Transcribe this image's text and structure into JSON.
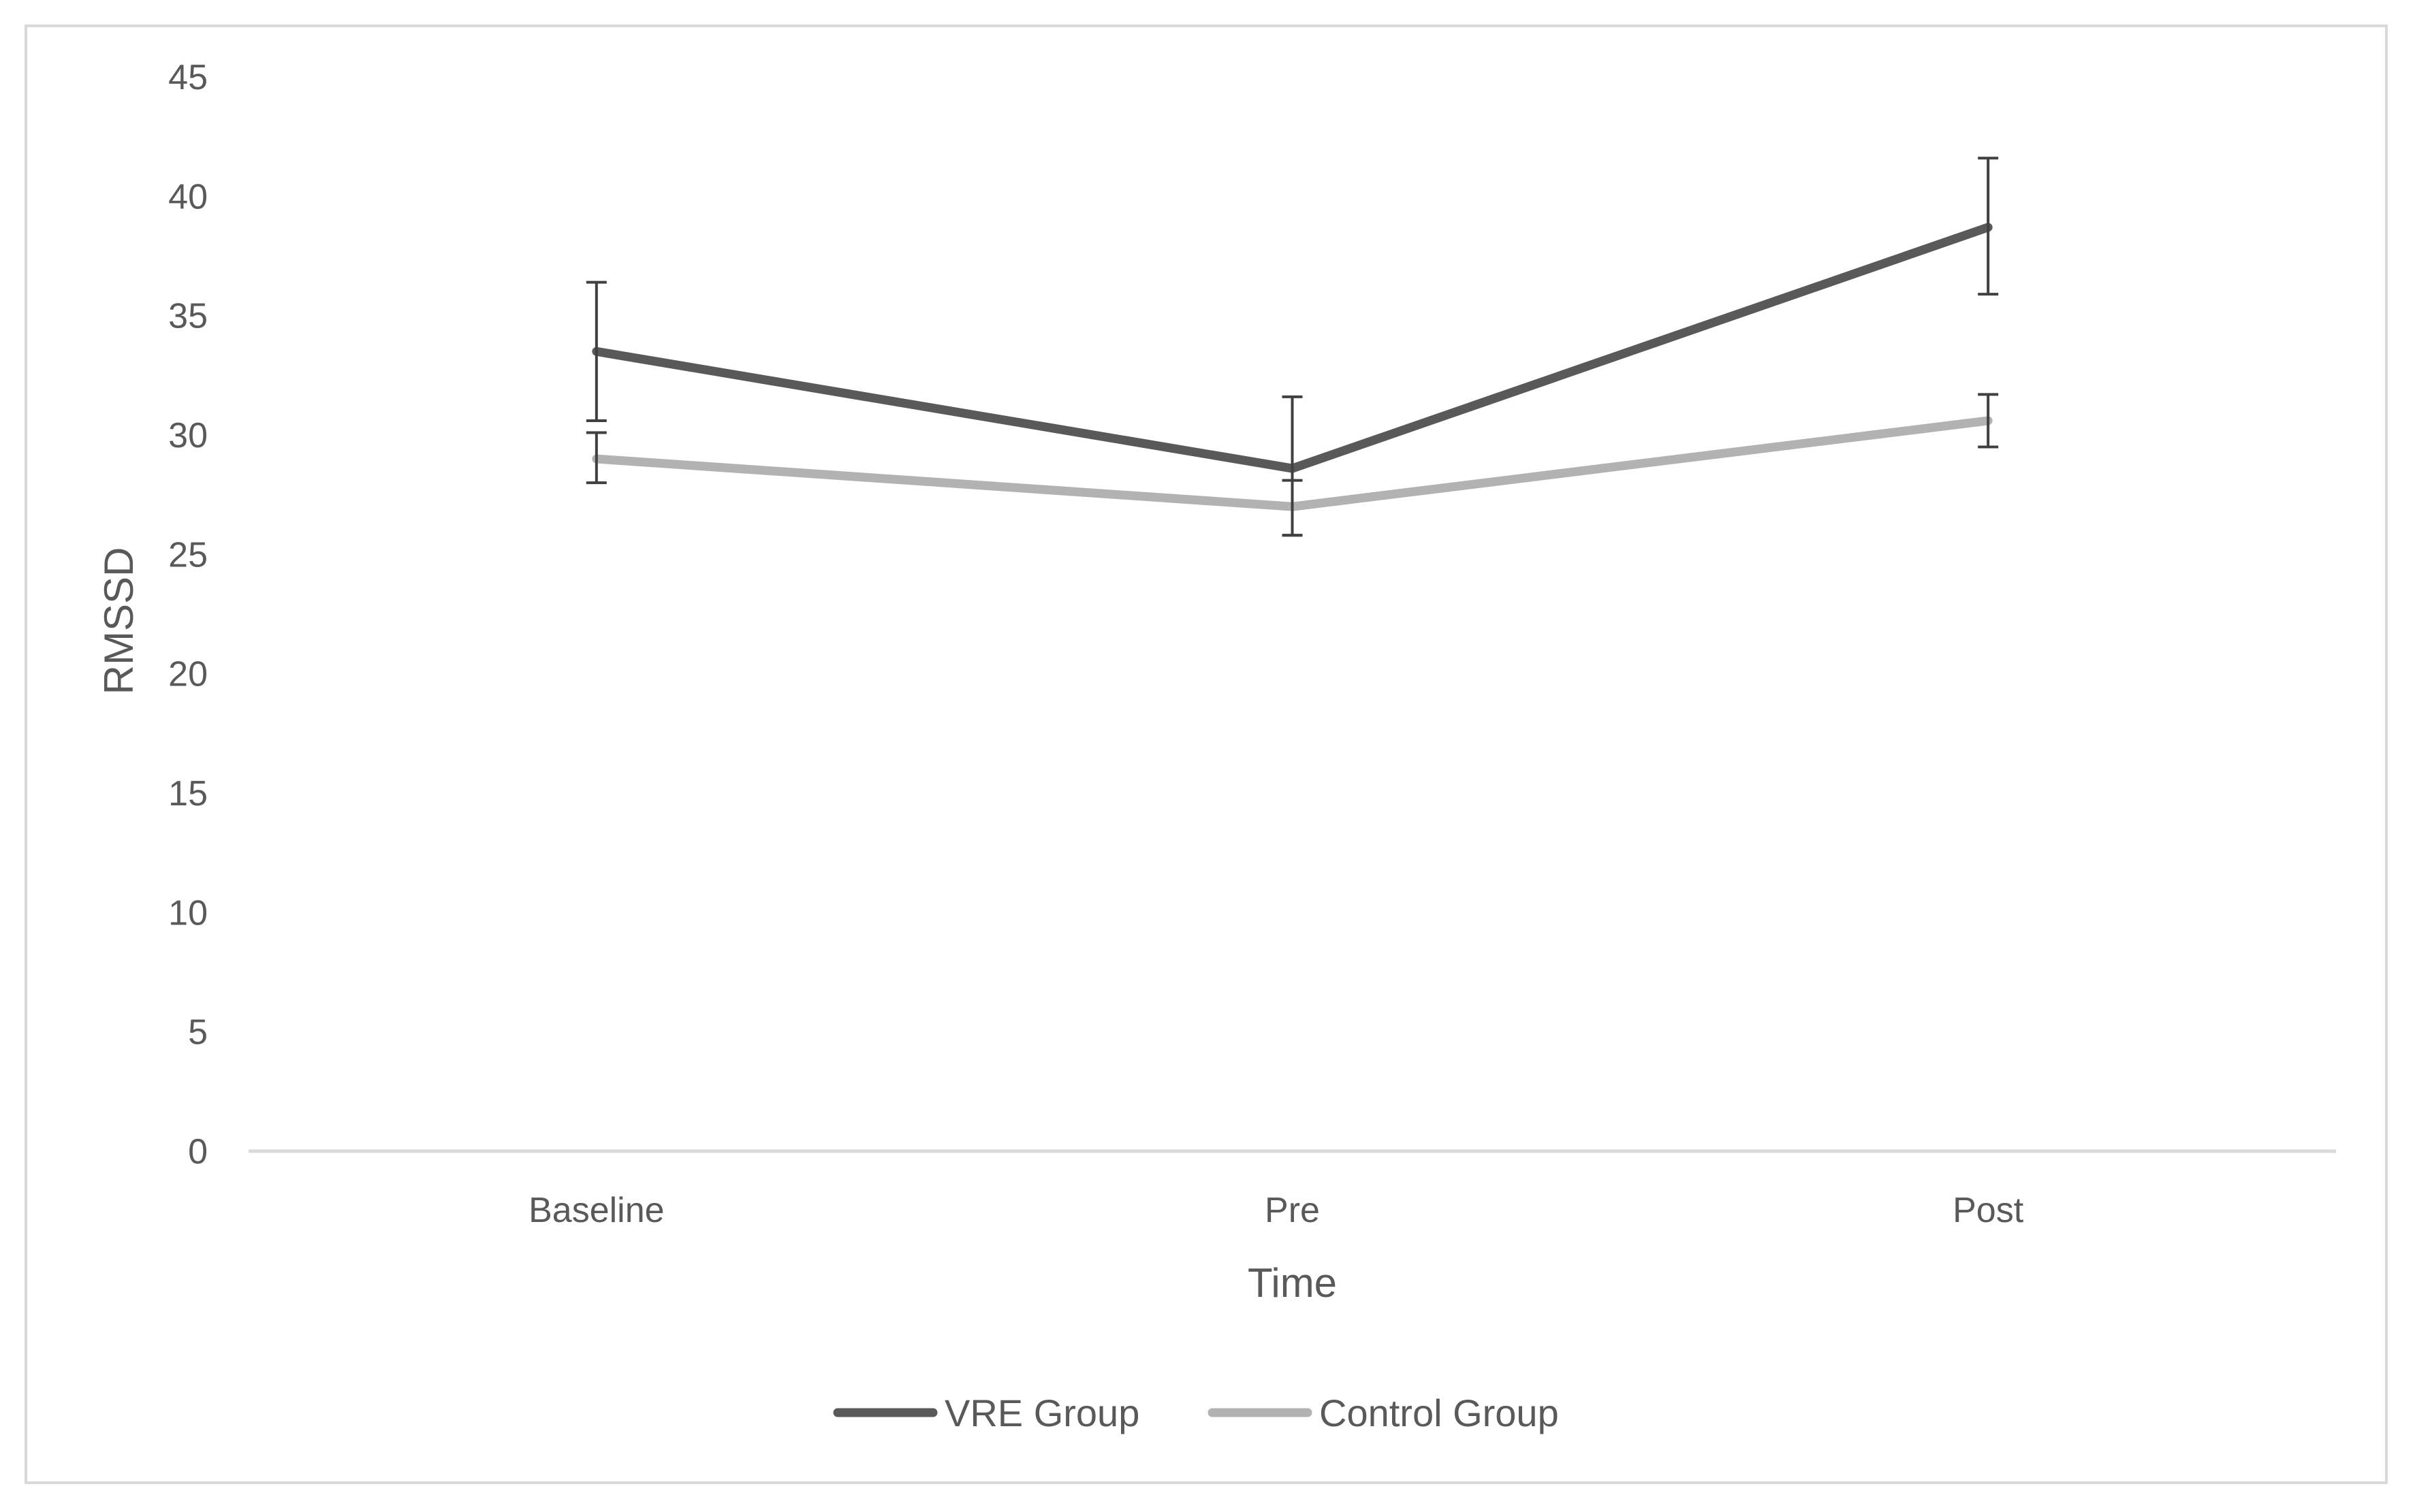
{
  "chart_data": {
    "type": "line",
    "title": "",
    "xlabel": "Time",
    "ylabel": "RMSSD",
    "categories": [
      "Baseline",
      "Pre",
      "Post"
    ],
    "ylim": [
      0,
      45
    ],
    "yticks": [
      0,
      5,
      10,
      15,
      20,
      25,
      30,
      35,
      40,
      45
    ],
    "grid": false,
    "legend_position": "bottom",
    "series": [
      {
        "name": "VRE Group",
        "color": "#595959",
        "values": [
          33.5,
          28.6,
          38.7
        ],
        "error_low": [
          30.6,
          25.8,
          35.9
        ],
        "error_high": [
          36.4,
          31.6,
          41.6
        ]
      },
      {
        "name": "Control Group",
        "color": "#b2b2b2",
        "values": [
          29.0,
          27.0,
          30.6
        ],
        "error_low": [
          28.0,
          25.8,
          29.5
        ],
        "error_high": [
          30.1,
          28.1,
          31.7
        ]
      }
    ]
  }
}
